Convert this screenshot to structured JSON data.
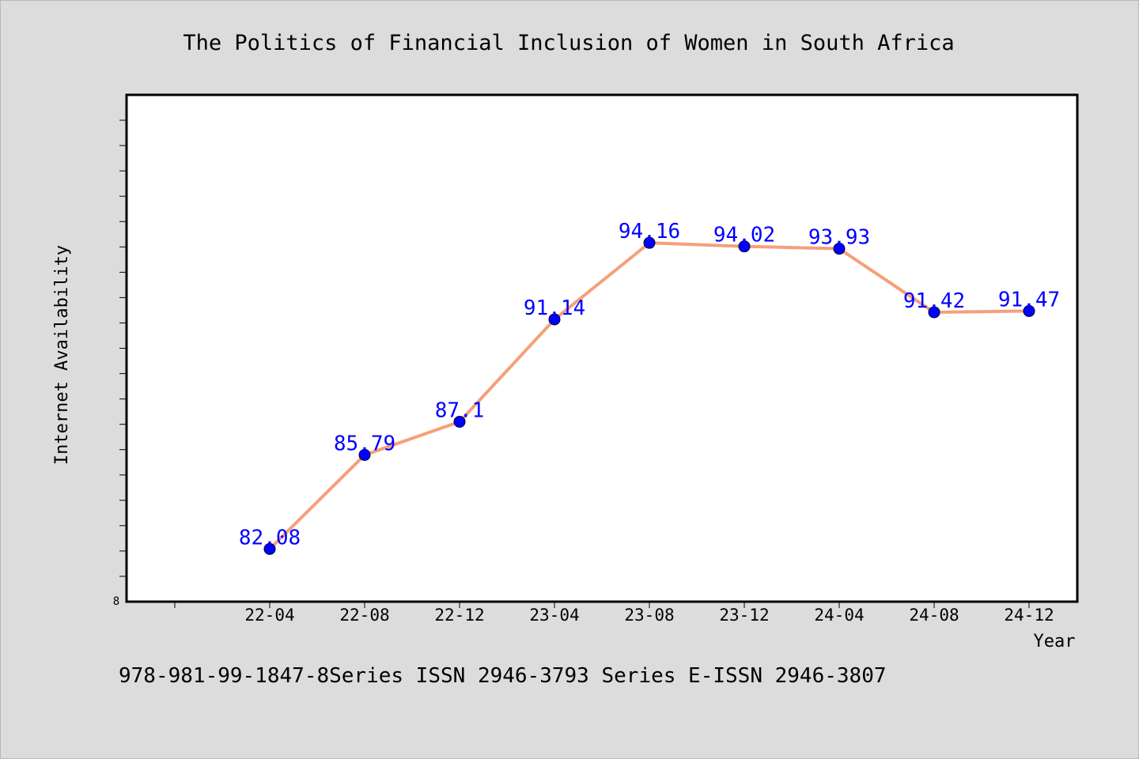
{
  "chart_data": {
    "type": "line",
    "title": "The Politics of Financial Inclusion of Women in South Africa",
    "xlabel": "Year",
    "ylabel": "Internet Availability",
    "categories": [
      "22-04",
      "22-08",
      "22-12",
      "23-04",
      "23-08",
      "23-12",
      "24-04",
      "24-08",
      "24-12"
    ],
    "series": [
      {
        "values": [
          82.08,
          85.79,
          87.1,
          91.14,
          94.16,
          94.02,
          93.93,
          91.42,
          91.47
        ],
        "labels": [
          "82.08",
          "85.79",
          "87.1",
          "91.14",
          "94.16",
          "94.02",
          "93.93",
          "91.42",
          "91.47"
        ]
      }
    ],
    "y_origin_label": "8",
    "ylim": [
      80,
      100
    ],
    "grid": false,
    "line_color": "#f5a07a",
    "marker_color": "#0000ff",
    "label_color": "#0000ff"
  },
  "footer": {
    "text": "978-981-99-1847-8Series ISSN 2946-3793 Series E-ISSN 2946-3807"
  }
}
